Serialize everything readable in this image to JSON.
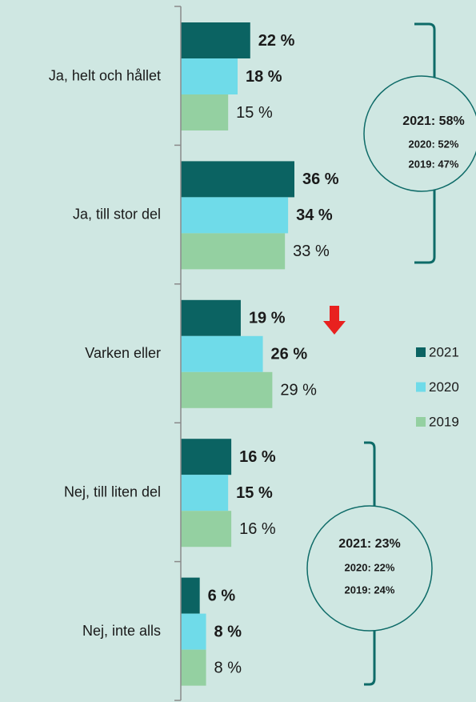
{
  "chart_data": {
    "type": "barh",
    "categories": [
      "Ja, helt och hållet",
      "Ja, till stor del",
      "Varken eller",
      "Nej, till liten del",
      "Nej, inte alls"
    ],
    "series": [
      {
        "name": "2021",
        "color": "#0b6362",
        "label_weight": "bold",
        "values": [
          22,
          36,
          19,
          16,
          6
        ],
        "value_labels": [
          "22 %",
          "36 %",
          "19 %",
          "16 %",
          "6 %"
        ]
      },
      {
        "name": "2020",
        "color": "#6fdbe9",
        "label_weight": "bold",
        "values": [
          18,
          34,
          26,
          15,
          8
        ],
        "value_labels": [
          "18 %",
          "34 %",
          "26 %",
          "15 %",
          "8 %"
        ]
      },
      {
        "name": "2019",
        "color": "#94d0a1",
        "label_weight": "normal",
        "values": [
          15,
          33,
          29,
          16,
          8
        ],
        "value_labels": [
          "15 %",
          "33 %",
          "29 %",
          "16 %",
          "8 %"
        ]
      }
    ],
    "xlim": [
      0,
      90
    ],
    "legend": "right",
    "annotations": [
      {
        "lines": [
          "2021: 58%",
          "2020: 52%",
          "2019: 47%"
        ]
      },
      {
        "lines": [
          "2021: 23%",
          "2020: 22%",
          "2019: 24%"
        ]
      }
    ]
  }
}
